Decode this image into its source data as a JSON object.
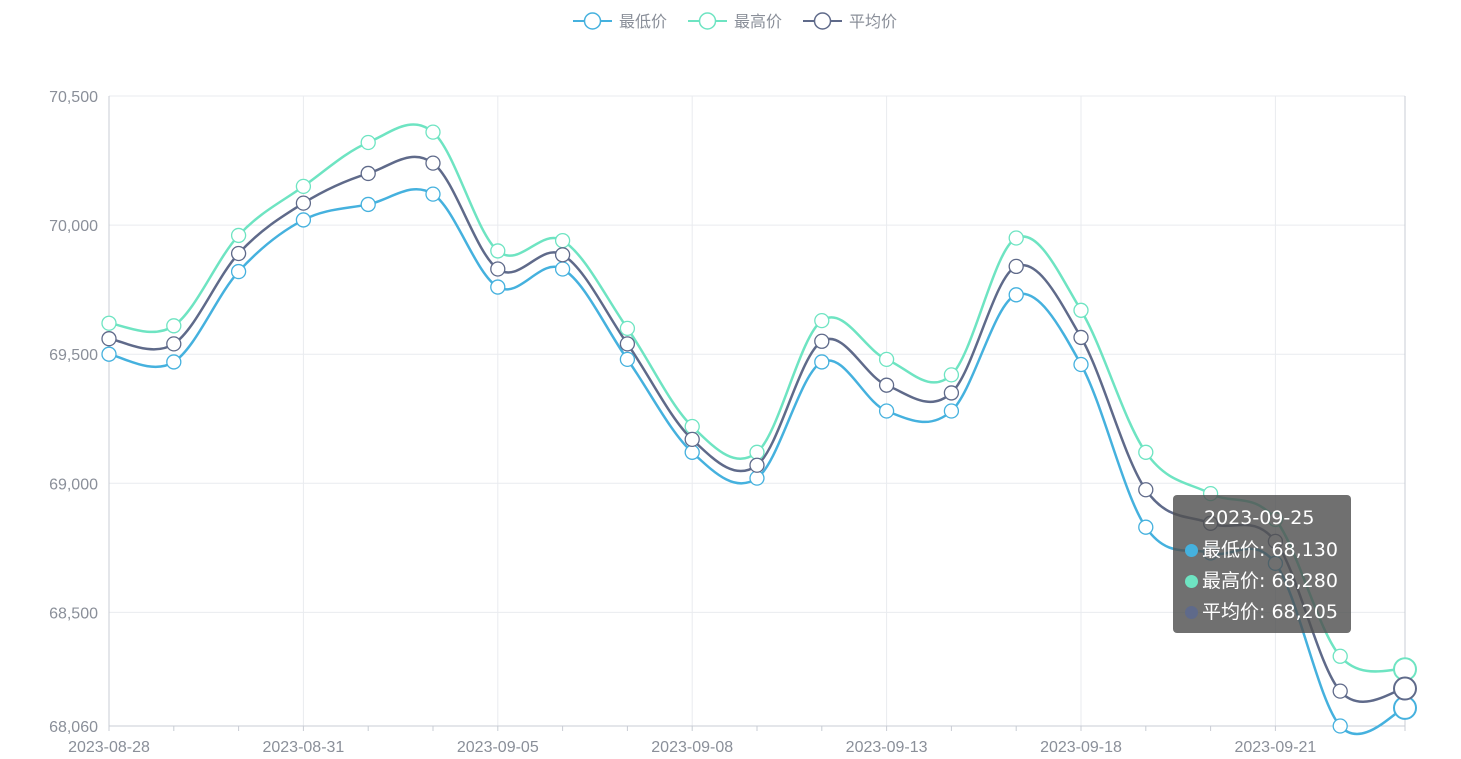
{
  "chart_data": {
    "type": "line",
    "smooth": true,
    "x": [
      "2023-08-28",
      "2023-08-29",
      "2023-08-30",
      "2023-08-31",
      "2023-09-01",
      "2023-09-04",
      "2023-09-05",
      "2023-09-06",
      "2023-09-07",
      "2023-09-08",
      "2023-09-11",
      "2023-09-12",
      "2023-09-13",
      "2023-09-14",
      "2023-09-15",
      "2023-09-18",
      "2023-09-19",
      "2023-09-20",
      "2023-09-21",
      "2023-09-22",
      "2023-09-25"
    ],
    "x_tick_labels": [
      "2023-08-28",
      "2023-08-31",
      "2023-09-05",
      "2023-09-08",
      "2023-09-13",
      "2023-09-18",
      "2023-09-21"
    ],
    "ylim": [
      68060,
      70500
    ],
    "y_tick_labels": [
      "70,500",
      "70,000",
      "69,500",
      "69,000",
      "68,500",
      "68,060"
    ],
    "y_tick_values": [
      70500,
      70000,
      69500,
      69000,
      68500,
      68060
    ],
    "grid": true,
    "legend_position": "top-center",
    "series": [
      {
        "name": "最低价",
        "color": "#45b1de",
        "values": [
          69500,
          69470,
          69820,
          70020,
          70080,
          70120,
          69760,
          69830,
          69480,
          69120,
          69020,
          69470,
          69280,
          69280,
          69730,
          69460,
          68830,
          68730,
          68690,
          68060,
          68130
        ]
      },
      {
        "name": "最高价",
        "color": "#6ee4c2",
        "values": [
          69620,
          69610,
          69960,
          70150,
          70320,
          70360,
          69900,
          69940,
          69600,
          69220,
          69120,
          69630,
          69480,
          69420,
          69950,
          69670,
          69120,
          68960,
          68860,
          68330,
          68280
        ]
      },
      {
        "name": "平均价",
        "color": "#5f6a8a",
        "values": [
          69560,
          69540,
          69890,
          70085,
          70200,
          70240,
          69830,
          69885,
          69540,
          69170,
          69070,
          69550,
          69380,
          69350,
          69840,
          69565,
          68975,
          68845,
          68775,
          68195,
          68205
        ]
      }
    ],
    "tooltip": {
      "title": "2023-09-25",
      "rows": [
        {
          "label": "最低价: 68,130",
          "color": "#45b1de"
        },
        {
          "label": "最高价: 68,280",
          "color": "#6ee4c2"
        },
        {
          "label": "平均价: 68,205",
          "color": "#5f6a8a"
        }
      ]
    }
  }
}
